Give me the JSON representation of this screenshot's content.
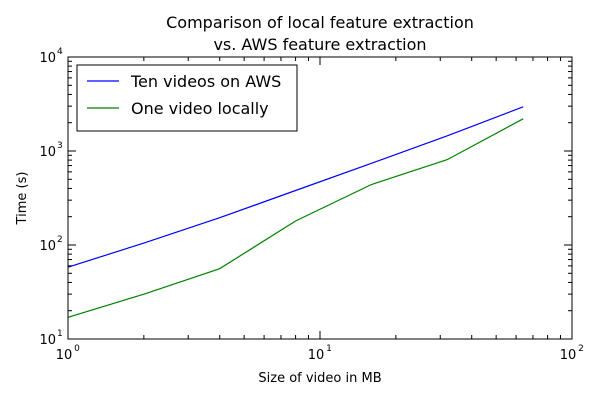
{
  "chart_data": {
    "type": "line",
    "title": [
      "Comparison of local feature extraction",
      "vs. AWS feature extraction"
    ],
    "xlabel": "Size of video in MB",
    "ylabel": "Time (s)",
    "xscale": "log",
    "yscale": "log",
    "xlim": [
      1,
      100
    ],
    "ylim": [
      10,
      10000
    ],
    "xticks": [
      {
        "base": "10",
        "exp": "0",
        "value": 1
      },
      {
        "base": "10",
        "exp": "1",
        "value": 10
      },
      {
        "base": "10",
        "exp": "2",
        "value": 100
      }
    ],
    "yticks": [
      {
        "base": "10",
        "exp": "1",
        "value": 10
      },
      {
        "base": "10",
        "exp": "2",
        "value": 100
      },
      {
        "base": "10",
        "exp": "3",
        "value": 1000
      },
      {
        "base": "10",
        "exp": "4",
        "value": 10000
      }
    ],
    "legend_position": "top-left",
    "grid": false,
    "series": [
      {
        "name": "Ten videos on AWS",
        "color": "#0000ff",
        "x": [
          1,
          2,
          4,
          8,
          16,
          32,
          64
        ],
        "y": [
          58,
          105,
          195,
          380,
          740,
          1450,
          2950
        ]
      },
      {
        "name": "One video locally",
        "color": "#008000",
        "x": [
          1,
          2,
          4,
          8,
          16,
          32,
          64
        ],
        "y": [
          17,
          30,
          56,
          180,
          440,
          810,
          2200
        ]
      }
    ]
  }
}
